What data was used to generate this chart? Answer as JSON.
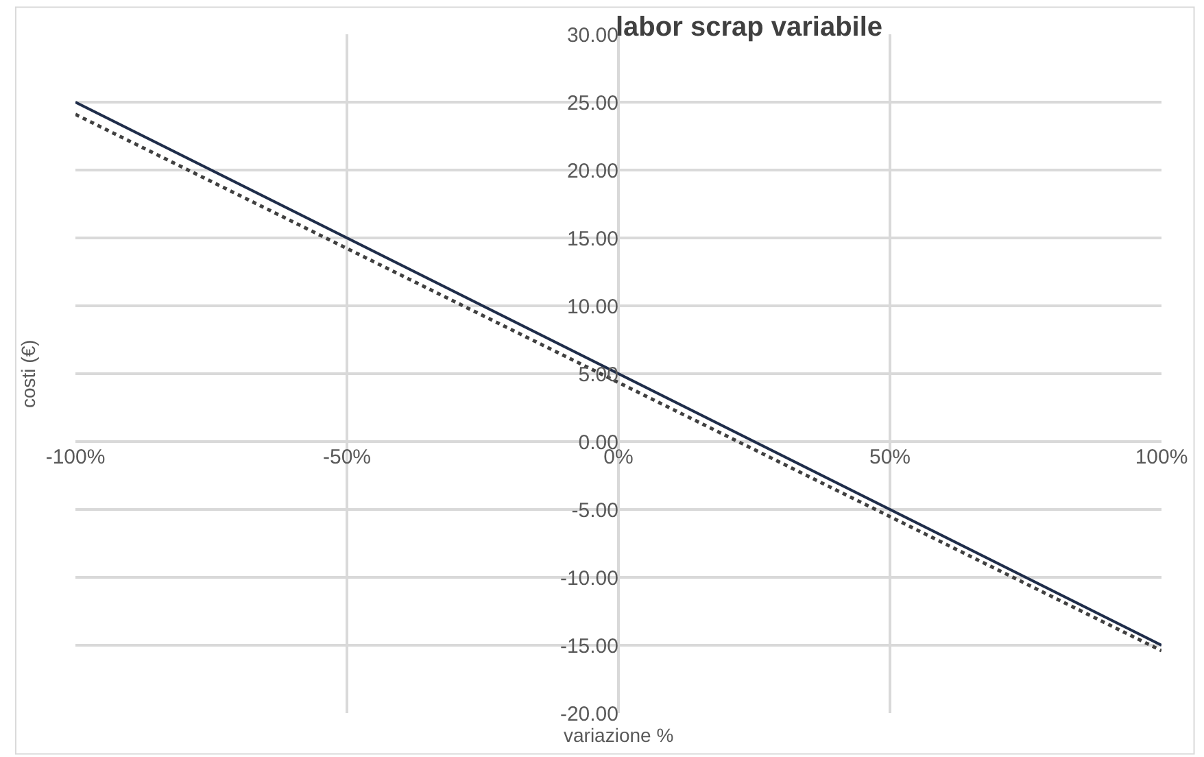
{
  "chart_data": {
    "type": "line",
    "title": "labor scrap variabile",
    "xlabel": "variazione %",
    "ylabel": "costi (€)",
    "x": [
      -1,
      1
    ],
    "series": [
      {
        "color": "#1f2d4a",
        "values": [
          25,
          -15
        ],
        "line_style": "solid"
      },
      {
        "color": "#404040",
        "values": [
          24.1,
          -15.4
        ],
        "line_style": "dotted"
      }
    ],
    "xlim": [
      -1,
      1
    ],
    "ylim": [
      -20,
      30
    ],
    "xticks": [
      {
        "value": -1,
        "label": "-100%"
      },
      {
        "value": -0.5,
        "label": "-50%"
      },
      {
        "value": 0,
        "label": "0%"
      },
      {
        "value": 0.5,
        "label": "50%"
      },
      {
        "value": 1,
        "label": "100%"
      }
    ],
    "yticks": [
      {
        "value": -20,
        "label": "-20.00"
      },
      {
        "value": -15,
        "label": "-15.00"
      },
      {
        "value": -10,
        "label": "-10.00"
      },
      {
        "value": -5,
        "label": "-5.00"
      },
      {
        "value": 0,
        "label": "0.00"
      },
      {
        "value": 5,
        "label": "5.00"
      },
      {
        "value": 10,
        "label": "10.00"
      },
      {
        "value": 15,
        "label": "15.00"
      },
      {
        "value": 20,
        "label": "20.00"
      },
      {
        "value": 25,
        "label": "25.00"
      },
      {
        "value": 30,
        "label": "30.00"
      }
    ],
    "grid": true
  }
}
